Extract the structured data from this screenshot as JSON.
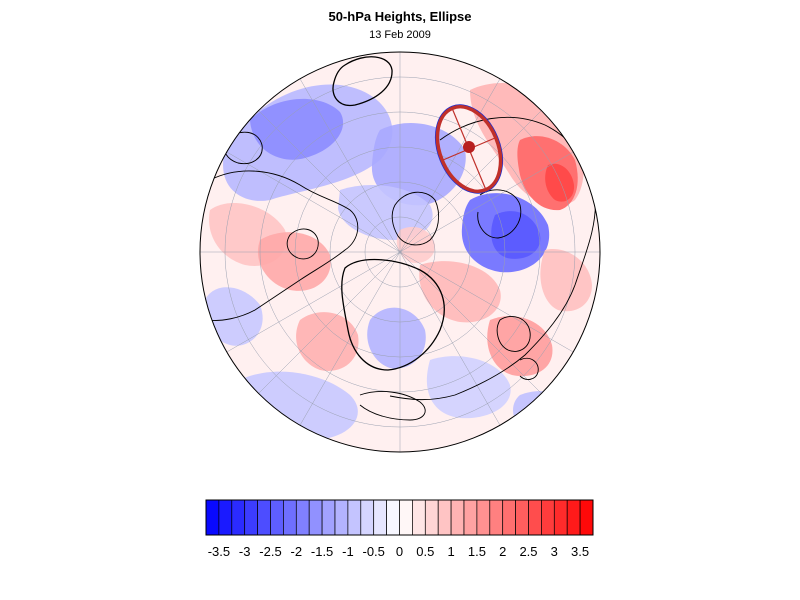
{
  "title": "50-hPa Heights, Ellipse",
  "subtitle": "13 Feb 2009",
  "colorbar": {
    "tick_labels": [
      "-3.5",
      "-3",
      "-2.5",
      "-2",
      "-1.5",
      "-1",
      "-0.5",
      "0",
      "0.5",
      "1",
      "1.5",
      "2",
      "2.5",
      "3",
      "3.5"
    ],
    "min": -3.75,
    "max": 3.75,
    "step": 0.25,
    "negative_color": "#0000ff",
    "positive_color": "#ff0000",
    "neutral_color": "#ffffff"
  },
  "map": {
    "projection": "polar stereographic (north)",
    "overlay_ellipse_color": "#c0302a",
    "overlay_ellipse_outline_color": "#1f2fd0",
    "contour_color": "#000000"
  }
}
